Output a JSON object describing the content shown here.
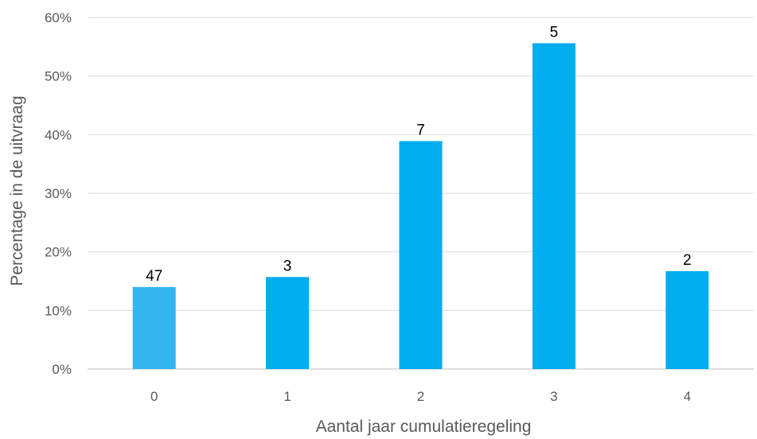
{
  "chart_data": {
    "type": "bar",
    "title": "",
    "xlabel": "Aantal jaar cumulatieregeling",
    "ylabel": "Percentage in de uitvraag",
    "categories": [
      "0",
      "1",
      "2",
      "3",
      "4"
    ],
    "values": [
      14,
      15.7,
      38.9,
      55.6,
      16.7
    ],
    "data_labels": [
      "47",
      "3",
      "7",
      "5",
      "2"
    ],
    "bar_colors": [
      "#33b5f0",
      "#00adef",
      "#00adef",
      "#00adef",
      "#00adef"
    ],
    "ylim": [
      0,
      60
    ],
    "yticks": [
      0,
      10,
      20,
      30,
      40,
      50,
      60
    ],
    "ytick_labels": [
      "0%",
      "10%",
      "20%",
      "30%",
      "40%",
      "50%",
      "60%"
    ],
    "grid": true,
    "legend": false
  }
}
